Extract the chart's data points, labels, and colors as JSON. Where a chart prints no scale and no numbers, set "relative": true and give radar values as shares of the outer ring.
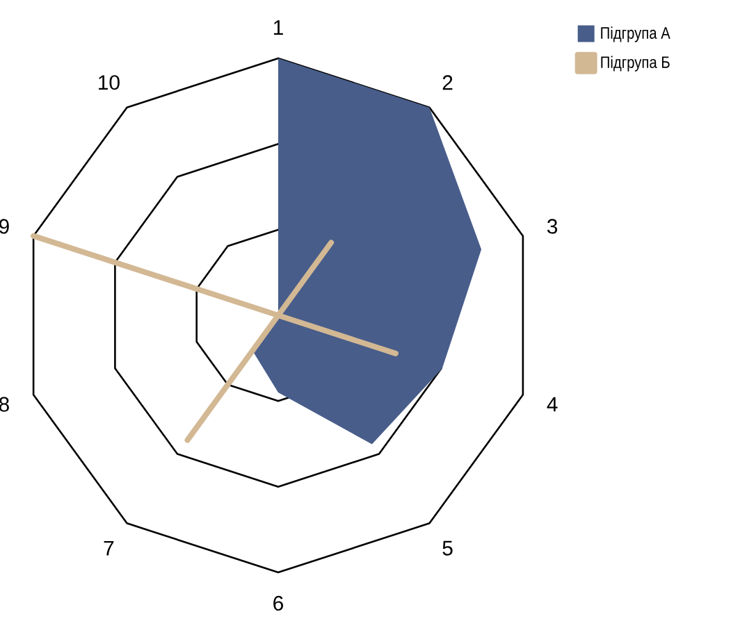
{
  "chart_data": {
    "type": "radar",
    "relative": true,
    "legend": "top right",
    "categories": [
      "1",
      "2",
      "3",
      "4",
      "5",
      "6",
      "7",
      "8",
      "9",
      "10"
    ],
    "series": [
      {
        "name": "Підгрупа А",
        "color": "#485d8a",
        "values": [
          1.0,
          1.0,
          0.83,
          0.67,
          0.62,
          0.3,
          0.17,
          0,
          0,
          0
        ]
      },
      {
        "name": "Підгрупа Б",
        "color": "#d3b894",
        "values": [
          0,
          0.35,
          0,
          0.48,
          0,
          0,
          0.6,
          0,
          1.0,
          0
        ]
      }
    ]
  }
}
